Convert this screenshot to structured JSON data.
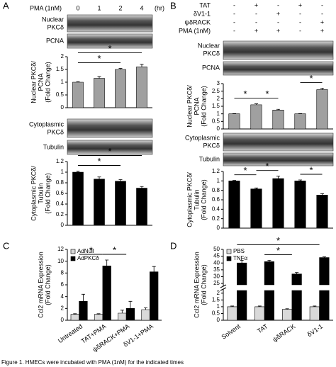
{
  "panel_labels": [
    "A",
    "B",
    "C",
    "D"
  ],
  "blots": {
    "a": [
      [
        "Nuclear",
        "PKCδ"
      ],
      [
        "PCNA"
      ],
      [
        "Cytoplasmic",
        "PKCδ"
      ],
      [
        "Tubulin"
      ]
    ],
    "b": [
      [
        "Nuclear",
        "PKCδ"
      ],
      [
        "PCNA"
      ],
      [
        "Cytoplasmic",
        "PKCδ"
      ],
      [
        "Tubulin"
      ]
    ]
  },
  "caption": "Figure 1. HMECs were incubated with PMA (1nM) for the indicated times",
  "chart_data": [
    {
      "type": "bar",
      "x_label": "PMA (1nM)",
      "categories": [
        "0",
        "1",
        "2",
        "4"
      ],
      "x_unit": "(hr)",
      "ylabel": [
        "Nuclear PKCδ/",
        "PCNA",
        "(Fold Change)"
      ],
      "values": [
        1,
        1.15,
        1.5,
        1.6
      ],
      "errors": [
        0.02,
        0.07,
        0.04,
        0.1
      ],
      "color": "#a0a0a0",
      "ylim": [
        0,
        2
      ],
      "yticks": [
        0,
        0.5,
        1,
        1.5,
        2
      ],
      "brackets": [
        {
          "label": "*",
          "from": 0,
          "to": 3
        },
        {
          "label": "*",
          "from": 0,
          "to": 2
        }
      ]
    },
    {
      "type": "bar",
      "ylabel": [
        "Cytoplasmic PKCδ/",
        "Tubulin",
        "(Fold Change)"
      ],
      "values": [
        1,
        0.87,
        0.83,
        0.7
      ],
      "errors": [
        0.02,
        0.04,
        0.03,
        0.03
      ],
      "color": "#000000",
      "ylim": [
        0,
        1.2
      ],
      "yticks": [
        0,
        0.2,
        0.4,
        0.6,
        0.8,
        1,
        1.2
      ],
      "brackets": [
        {
          "label": "*",
          "from": 0,
          "to": 3
        },
        {
          "label": "*",
          "from": 0,
          "to": 2
        }
      ]
    },
    {
      "type": "bar",
      "conditions": [
        {
          "name": "TAT",
          "signs": [
            "-",
            "+",
            "-",
            "+",
            "-"
          ]
        },
        {
          "name": "δV1-1",
          "signs": [
            "-",
            "-",
            "+",
            "-",
            "-"
          ]
        },
        {
          "name": "ψδRACK",
          "signs": [
            "-",
            "-",
            "-",
            "-",
            "+"
          ]
        },
        {
          "name": "PMA (1nM)",
          "signs": [
            "-",
            "+",
            "+",
            "-",
            "+"
          ]
        }
      ],
      "ylabel": [
        "Nuclear PKCδ/",
        "PCNA",
        "(Fold Change)"
      ],
      "values": [
        1,
        1.6,
        1.25,
        1,
        2.6
      ],
      "errors": [
        0.02,
        0.06,
        0.05,
        0.02,
        0.1
      ],
      "color": "#a0a0a0",
      "ylim": [
        0,
        3
      ],
      "yticks": [
        0,
        0.5,
        1,
        1.5,
        2,
        2.5,
        3
      ],
      "brackets": [
        {
          "label": "*",
          "from": 0,
          "to": 1
        },
        {
          "label": "*",
          "from": 1,
          "to": 2
        },
        {
          "label": "*",
          "from": 3,
          "to": 4
        }
      ]
    },
    {
      "type": "bar",
      "ylabel": [
        "Cytoplasmic PKCδ/",
        "Tubulin",
        "(Fold Change)"
      ],
      "values": [
        1,
        0.83,
        1.05,
        1,
        0.7
      ],
      "errors": [
        0.01,
        0.02,
        0.05,
        0.02,
        0.03
      ],
      "color": "#000000",
      "ylim": [
        0,
        1.2
      ],
      "yticks": [
        0,
        0.2,
        0.4,
        0.6,
        0.8,
        1,
        1.2
      ],
      "brackets": [
        {
          "label": "*",
          "from": 0,
          "to": 1
        },
        {
          "label": "*",
          "from": 1,
          "to": 2
        },
        {
          "label": "*",
          "from": 3,
          "to": 4
        }
      ]
    },
    {
      "type": "bar",
      "ylabel": [
        "Ccl2 mRNA Expression",
        "(Fold Change)"
      ],
      "categories": [
        "Untreated",
        "TAT+PMA",
        "ψδRACK+PMA",
        "δV1-1+PMA"
      ],
      "series": [
        {
          "name": "AdNull",
          "color": "#d9d9d9",
          "values": [
            1,
            1,
            1.2,
            1.8
          ],
          "errors": [
            0.1,
            0.1,
            0.5,
            0.3
          ]
        },
        {
          "name": "AdPKCδ",
          "color": "#000000",
          "values": [
            3.2,
            9.2,
            2,
            8.2
          ],
          "errors": [
            1.2,
            1,
            1.2,
            0.9
          ]
        }
      ],
      "ylim": [
        0,
        12
      ],
      "yticks": [
        0,
        2,
        4,
        6,
        8,
        10,
        12
      ],
      "legend": "upper left",
      "brackets": [
        {
          "label": "*",
          "from": 0,
          "to": 1
        },
        {
          "label": "*",
          "from": 1,
          "to": 2
        }
      ]
    },
    {
      "type": "bar",
      "ylabel": [
        "Ccl2 mRNA Expression",
        "(Fold Change)"
      ],
      "categories": [
        "Solvent",
        "TAT",
        "ψδRACK",
        "δV1-1"
      ],
      "series": [
        {
          "name": "PBS",
          "color": "#d9d9d9",
          "values": [
            1,
            1,
            0.8,
            1
          ],
          "errors": [
            0.05,
            0.05,
            0.05,
            0.05
          ]
        },
        {
          "name": "TNFα",
          "color": "#000000",
          "values": [
            40,
            41,
            32,
            44
          ],
          "errors": [
            2,
            1,
            1,
            0.5
          ]
        }
      ],
      "ylim": [
        0,
        50
      ],
      "ybreak": [
        2.2,
        24
      ],
      "yticks": [
        0,
        0.5,
        1,
        1.5,
        2,
        25,
        30,
        35,
        40,
        45,
        50
      ],
      "legend": "upper left",
      "brackets": [
        {
          "label": "*",
          "from": 0,
          "to": 3
        },
        {
          "label": "*",
          "from": 1,
          "to": 2
        }
      ]
    }
  ]
}
